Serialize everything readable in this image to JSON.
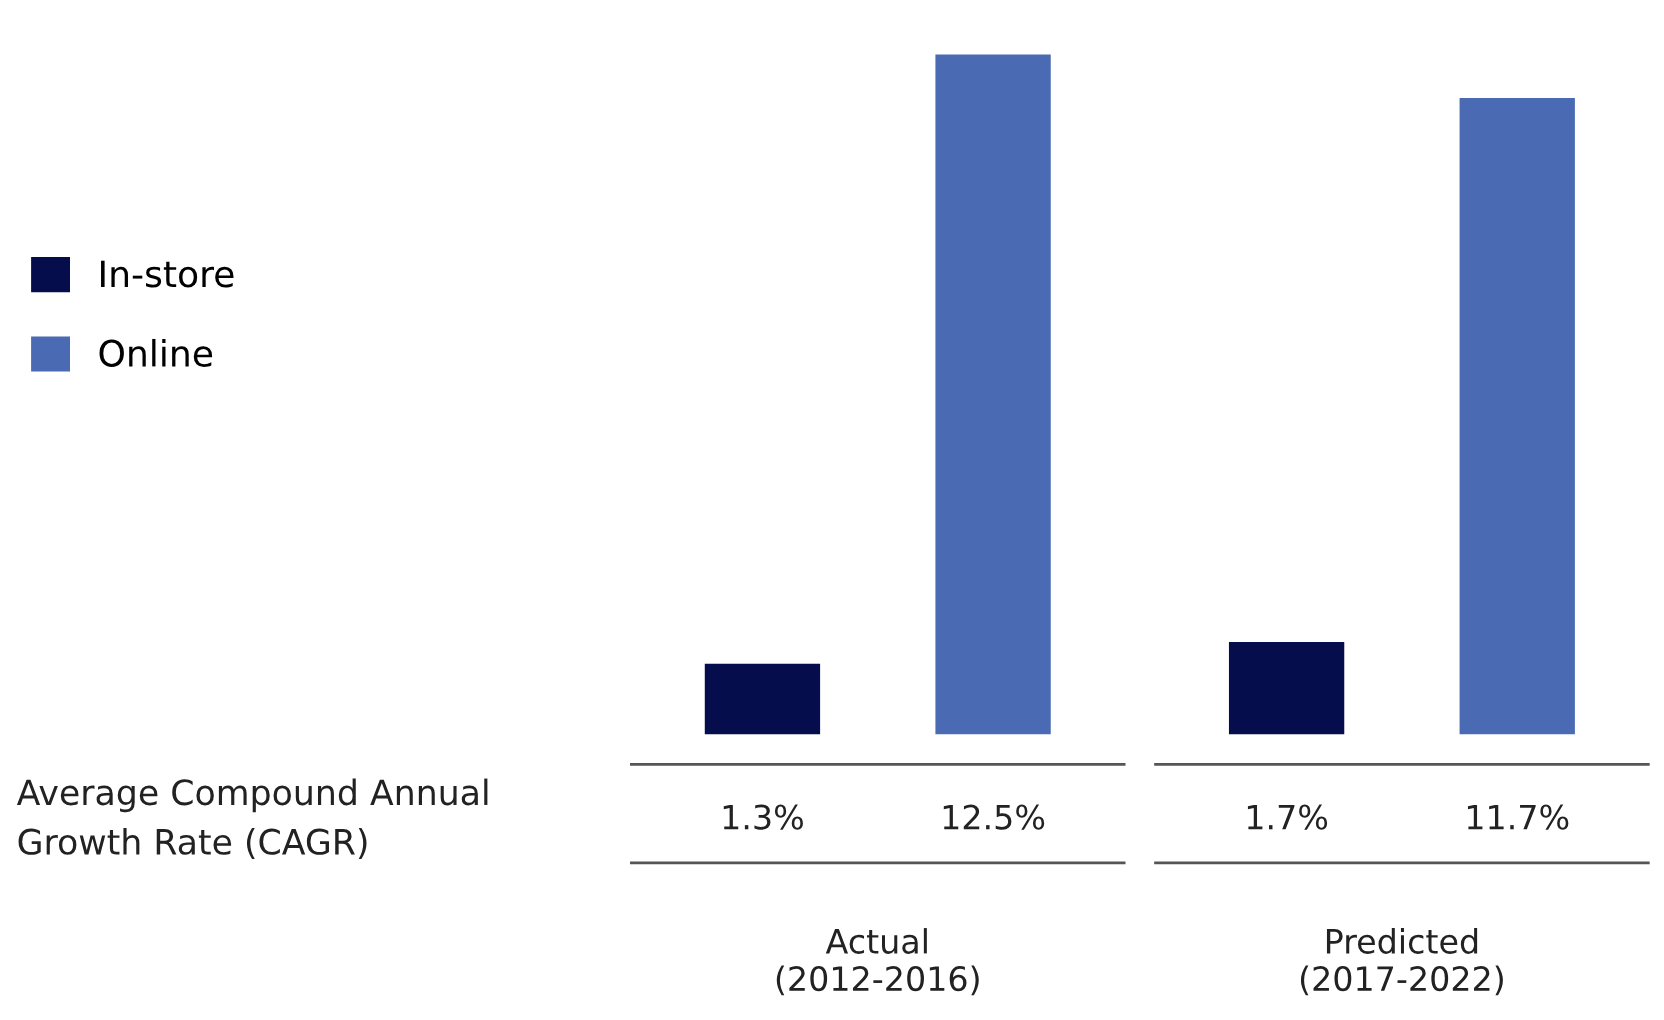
{
  "chart_data": {
    "type": "bar",
    "categories": [
      "Actual\n(2012-2016)",
      "Predicted\n(2017-2022)"
    ],
    "series": [
      {
        "name": "In-store",
        "color": "#050d4d",
        "values": [
          1.3,
          1.7
        ],
        "value_labels": [
          "1.3%",
          "1.7%"
        ]
      },
      {
        "name": "Online",
        "color": "#4a6ab3",
        "values": [
          12.5,
          11.7
        ],
        "value_labels": [
          "12.5%",
          "11.7%"
        ]
      }
    ],
    "annotations": [
      "Average Compound Annual\nGrowth Rate (CAGR)"
    ],
    "legend": "left"
  }
}
